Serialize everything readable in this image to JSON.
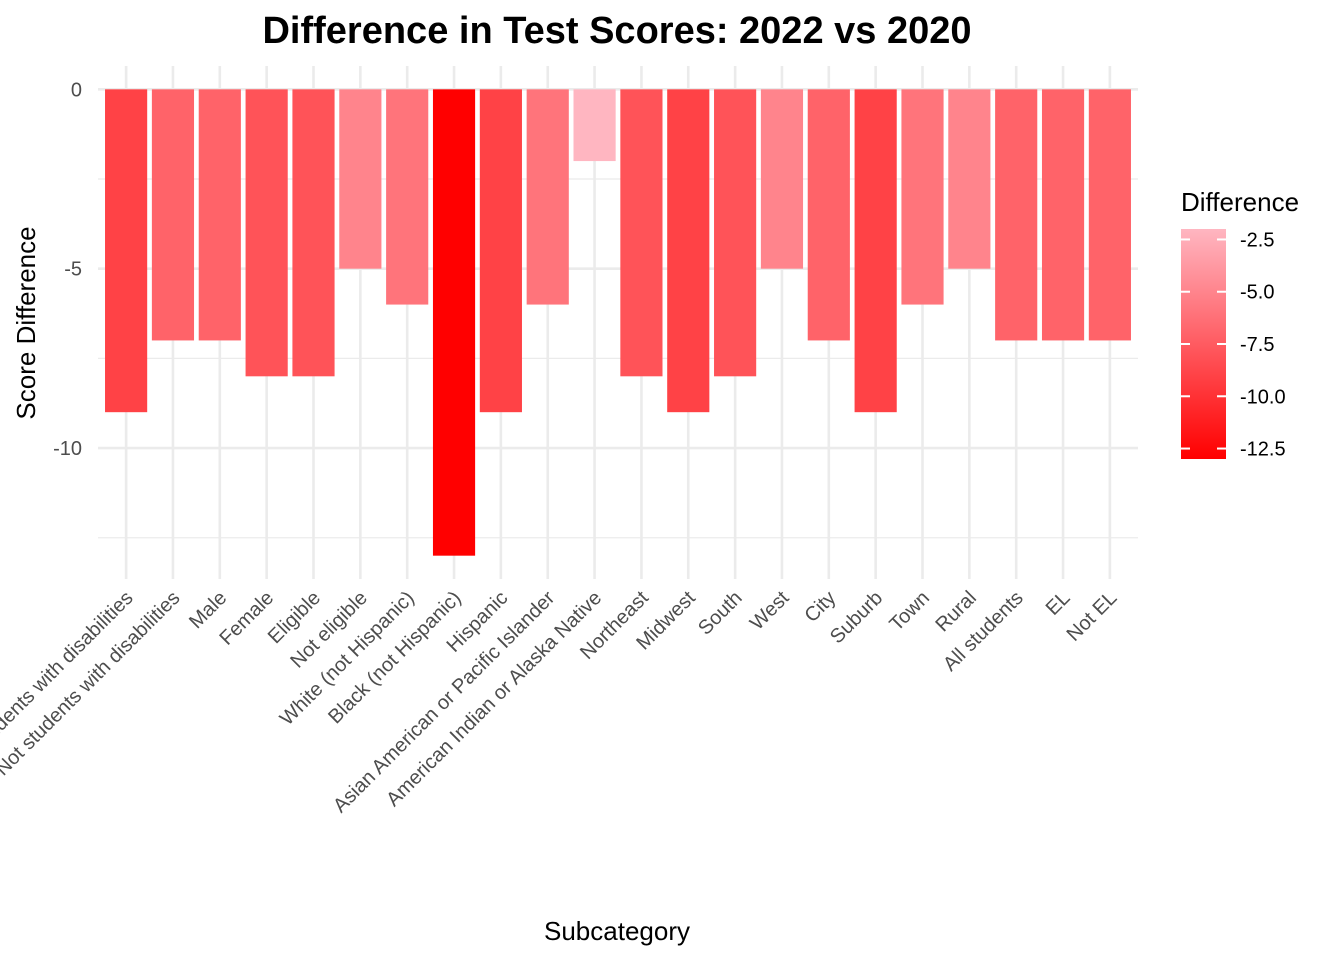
{
  "chart_data": {
    "type": "bar",
    "title": "Difference in Test Scores: 2022 vs 2020",
    "xlabel": "Subcategory",
    "ylabel": "Score Difference",
    "categories": [
      "Students with disabilities",
      "Not students with disabilities",
      "Male",
      "Female",
      "Eligible",
      "Not eligible",
      "White (not Hispanic)",
      "Black (not Hispanic)",
      "Hispanic",
      "Asian American or Pacific Islander",
      "American Indian or Alaska Native",
      "Northeast",
      "Midwest",
      "South",
      "West",
      "City",
      "Suburb",
      "Town",
      "Rural",
      "All students",
      "EL",
      "Not EL"
    ],
    "values": [
      -9,
      -7,
      -7,
      -8,
      -8,
      -5,
      -6,
      -13,
      -9,
      -6,
      -2,
      -8,
      -9,
      -8,
      -5,
      -7,
      -9,
      -6,
      -5,
      -7,
      -7,
      -7
    ],
    "ylim": [
      -13.65,
      0.65
    ],
    "yticks": [
      0,
      -5,
      -10
    ],
    "grid": true,
    "legend": {
      "title": "Difference",
      "placement": "right",
      "type": "colorbar",
      "ticks": [
        -2.5,
        -5.0,
        -7.5,
        -10.0,
        -12.5
      ],
      "tick_labels": [
        "-2.5",
        "-5.0",
        "-7.5",
        "-10.0",
        "-12.5"
      ],
      "range": [
        -13,
        -2
      ],
      "color_high": "#ffb6c1",
      "color_low": "#ff0000"
    }
  }
}
